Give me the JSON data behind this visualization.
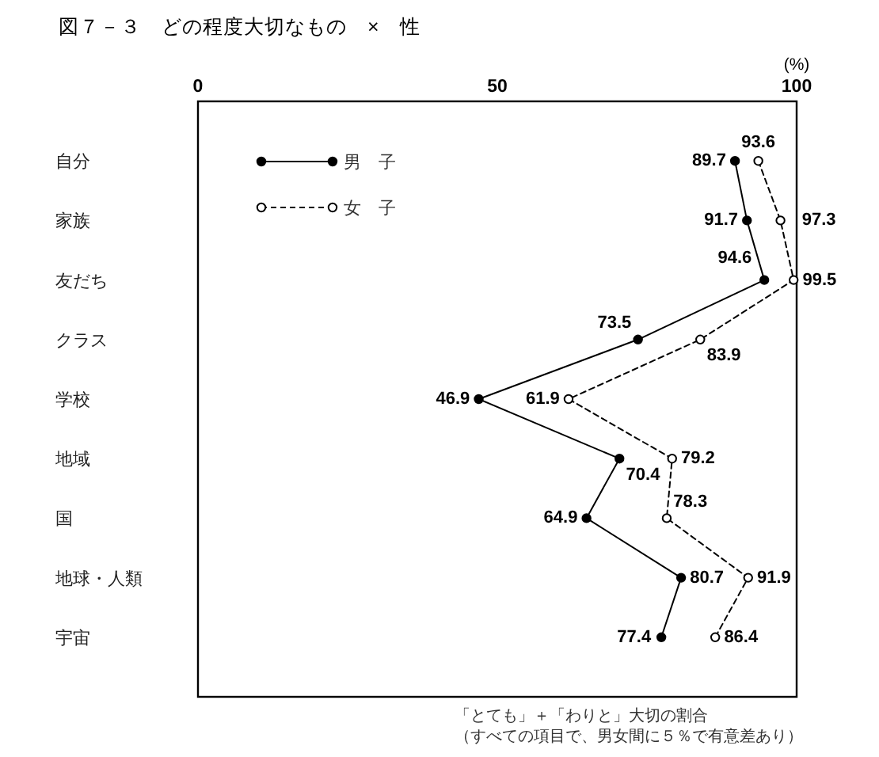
{
  "chart_data": {
    "type": "line",
    "orientation": "horizontal",
    "title": "図７－３　どの程度大切なもの　×　性",
    "xlabel": "(%)",
    "categories": [
      "自分",
      "家族",
      "友だち",
      "クラス",
      "学校",
      "地域",
      "国",
      "地球・人類",
      "宇宙"
    ],
    "xlim": [
      0,
      100
    ],
    "xticks": [
      0,
      50,
      100
    ],
    "series": [
      {
        "name": "男　子",
        "color": "#000000",
        "line_style": "solid",
        "values": [
          89.7,
          91.7,
          94.6,
          73.5,
          46.9,
          70.4,
          64.9,
          80.7,
          77.4
        ]
      },
      {
        "name": "女　子",
        "color": "#000000",
        "line_style": "dashed",
        "values": [
          93.6,
          97.3,
          99.5,
          83.9,
          61.9,
          79.2,
          78.3,
          91.9,
          86.4
        ]
      }
    ],
    "marker": "circle",
    "data_labels": true,
    "legend": "top left",
    "annotations": [
      "「とても」＋「わりと」大切の割合",
      "（すべての項目で、男女間に５％で有意差あり）"
    ]
  }
}
